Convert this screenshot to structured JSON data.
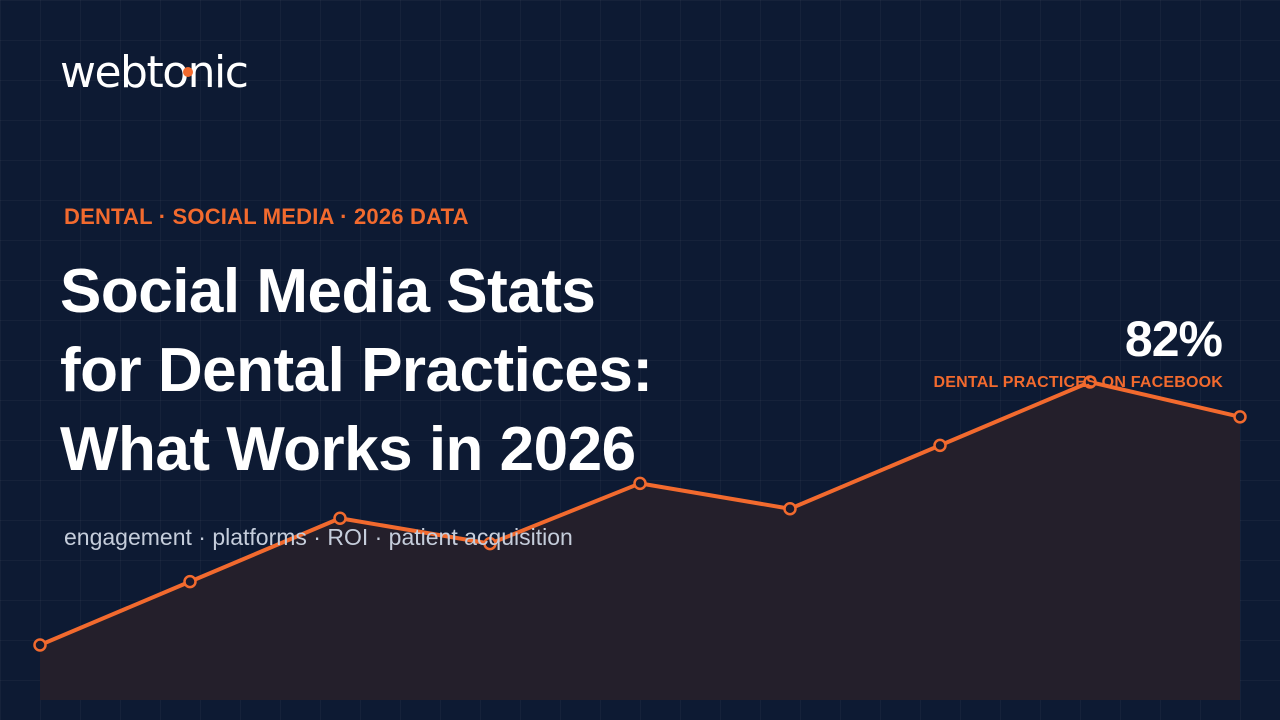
{
  "brand": {
    "logo_text": "webtonic",
    "accent_color": "#f26a2e"
  },
  "hero": {
    "eyebrow": "DENTAL · SOCIAL MEDIA · 2026 DATA",
    "title_lines": [
      "Social Media Stats",
      "for Dental Practices:",
      "What Works in 2026"
    ],
    "subtitle": "engagement · platforms · ROI · patient acquisition"
  },
  "highlight": {
    "value": "82%",
    "label": "DENTAL PRACTICES ON FACEBOOK"
  },
  "chart_data": {
    "type": "area",
    "x": [
      1,
      2,
      3,
      4,
      5,
      6,
      7,
      8,
      9
    ],
    "values": [
      20,
      40,
      60,
      52,
      71,
      63,
      83,
      103,
      92
    ],
    "ylim": [
      0,
      120
    ],
    "grid": true,
    "line_color": "#f26a2e",
    "fill_color": "#241f2b",
    "marker_fill": "#1a1a2c"
  }
}
